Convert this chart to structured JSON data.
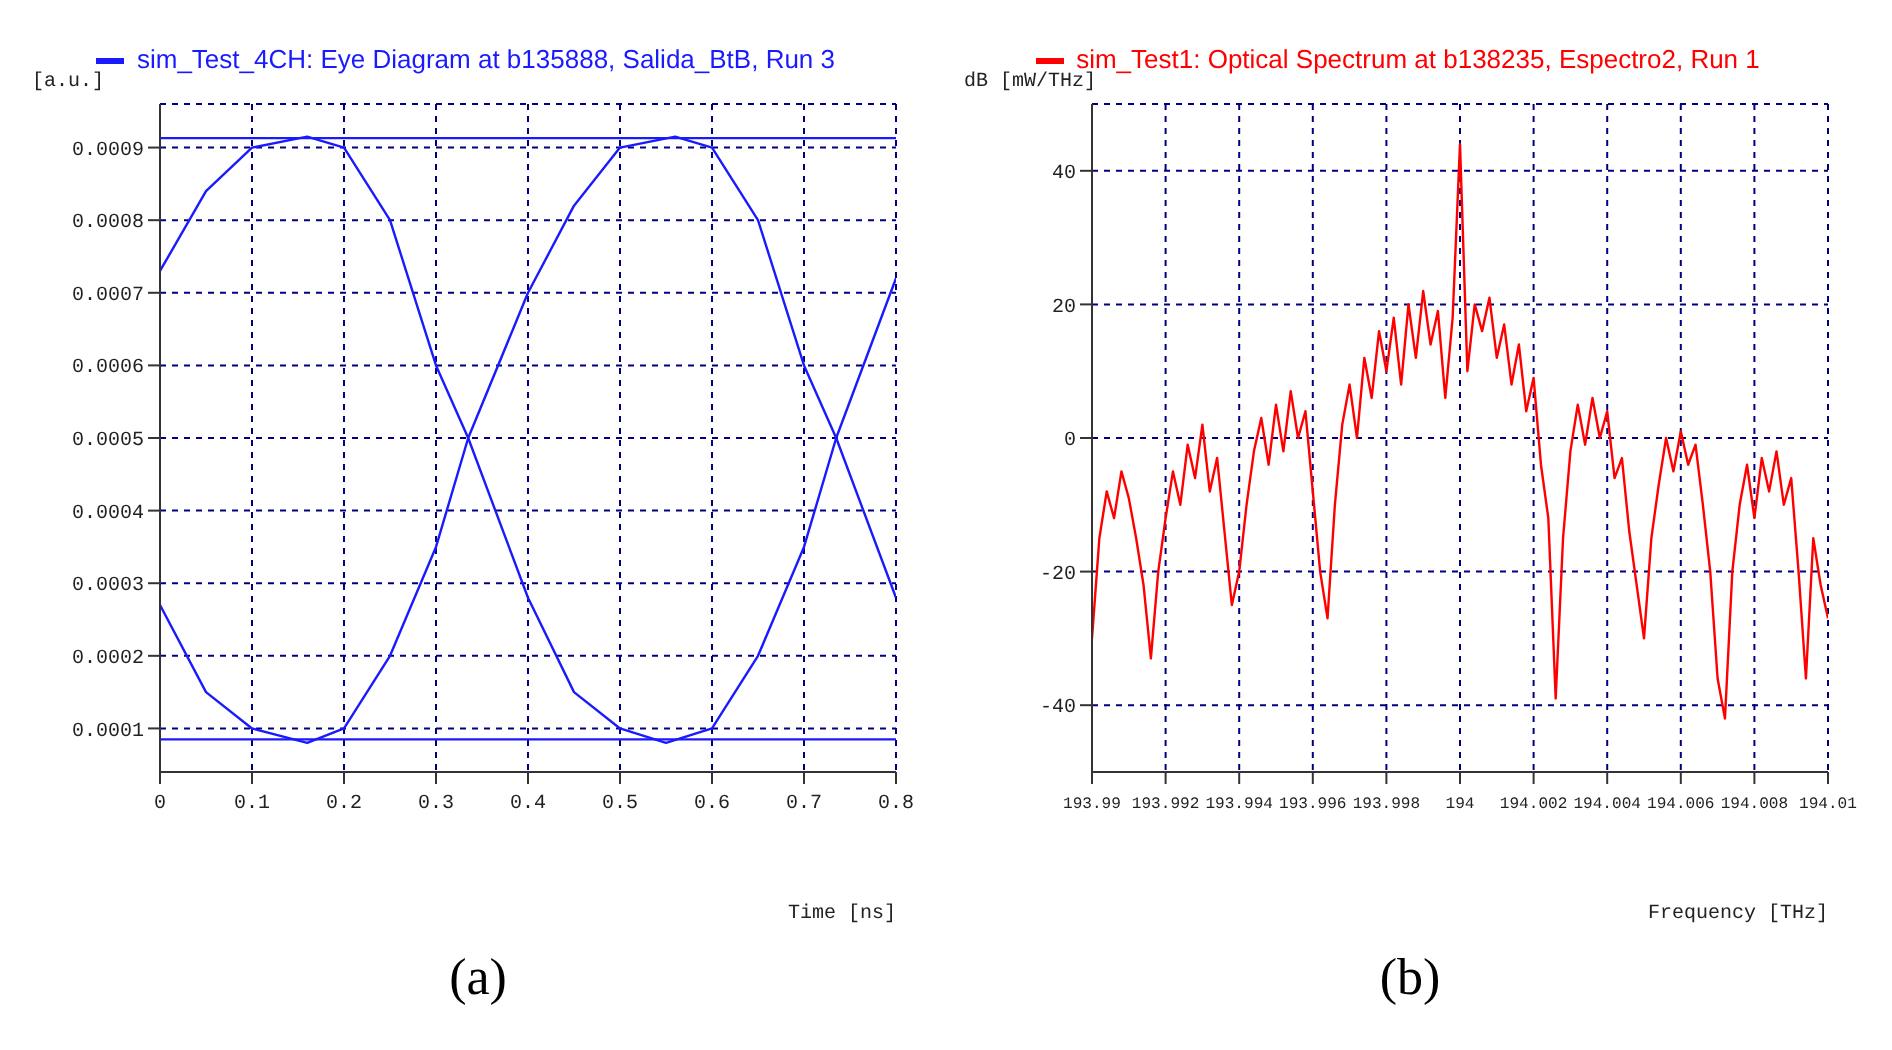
{
  "chart_data": [
    {
      "type": "line",
      "legend": "top",
      "grid": true,
      "ylabel": "[a.u.]",
      "xlabel": "Time [ns]",
      "annotations": [
        "(a)"
      ],
      "xlim": [
        0,
        0.8
      ],
      "xticks": [
        0,
        0.1,
        0.2,
        0.3,
        0.4,
        0.5,
        0.6,
        0.7,
        0.8
      ],
      "ylim": [
        4e-05,
        0.00096
      ],
      "yticks": [
        0.0001,
        0.0002,
        0.0003,
        0.0004,
        0.0005,
        0.0006,
        0.0007,
        0.0008,
        0.0009
      ],
      "series": [
        {
          "name": "sim_Test_4CH: Eye Diagram at b135888, Salida_BtB, Run 3",
          "color": "#1a1aff",
          "x": [
            0,
            0.05,
            0.1,
            0.16,
            0.2,
            0.25,
            0.3,
            0.335,
            0.4,
            0.45,
            0.5,
            0.55,
            0.6,
            0.65,
            0.7,
            0.735,
            0.8
          ],
          "values": [
            0.00073,
            0.00084,
            0.0009,
            0.000915,
            0.0009,
            0.0008,
            0.0006,
            0.0005,
            0.00028,
            0.00015,
            0.0001,
            8e-05,
            0.0001,
            0.0002,
            0.00035,
            0.0005,
            0.00072
          ]
        },
        {
          "color": "#1a1aff",
          "x": [
            0,
            0.05,
            0.1,
            0.16,
            0.2,
            0.25,
            0.3,
            0.335,
            0.4,
            0.45,
            0.5,
            0.56,
            0.6,
            0.65,
            0.7,
            0.735,
            0.8
          ],
          "values": [
            0.00027,
            0.00015,
            0.0001,
            8e-05,
            0.0001,
            0.0002,
            0.00035,
            0.0005,
            0.0007,
            0.00082,
            0.0009,
            0.000915,
            0.0009,
            0.0008,
            0.0006,
            0.0005,
            0.00028
          ]
        },
        {
          "color": "#1a1aff",
          "x": [
            0,
            0.8
          ],
          "values": [
            0.000913,
            0.000913
          ]
        },
        {
          "color": "#1a1aff",
          "x": [
            0,
            0.8
          ],
          "values": [
            8.5e-05,
            8.5e-05
          ]
        }
      ]
    },
    {
      "type": "line",
      "legend": "top",
      "grid": true,
      "ylabel": "dB [mW/THz]",
      "xlabel": "Frequency [THz]",
      "annotations": [
        "(b)"
      ],
      "xlim": [
        193.99,
        194.01
      ],
      "xticks": [
        193.99,
        193.992,
        193.994,
        193.996,
        193.998,
        194,
        194.002,
        194.004,
        194.006,
        194.008,
        194.01
      ],
      "ylim": [
        -50,
        50
      ],
      "yticks": [
        -40,
        -20,
        0,
        20,
        40
      ],
      "series": [
        {
          "name": "sim_Test1: Optical Spectrum at b138235, Espectro2, Run 1",
          "color": "#ff0000",
          "x": [
            193.99,
            193.9902,
            193.9904,
            193.9906,
            193.9908,
            193.991,
            193.9912,
            193.9914,
            193.9916,
            193.9918,
            193.992,
            193.9922,
            193.9924,
            193.9926,
            193.9928,
            193.993,
            193.9932,
            193.9934,
            193.9936,
            193.9938,
            193.994,
            193.9942,
            193.9944,
            193.9946,
            193.9948,
            193.995,
            193.9952,
            193.9954,
            193.9956,
            193.9958,
            193.996,
            193.9962,
            193.9964,
            193.9966,
            193.9968,
            193.997,
            193.9972,
            193.9974,
            193.9976,
            193.9978,
            193.998,
            193.9982,
            193.9984,
            193.9986,
            193.9988,
            193.999,
            193.9992,
            193.9994,
            193.9996,
            193.9998,
            194,
            194.0002,
            194.0004,
            194.0006,
            194.0008,
            194.001,
            194.0012,
            194.0014,
            194.0016,
            194.0018,
            194.002,
            194.0022,
            194.0024,
            194.0026,
            194.0028,
            194.003,
            194.0032,
            194.0034,
            194.0036,
            194.0038,
            194.004,
            194.0042,
            194.0044,
            194.0046,
            194.0048,
            194.005,
            194.0052,
            194.0054,
            194.0056,
            194.0058,
            194.006,
            194.0062,
            194.0064,
            194.0066,
            194.0068,
            194.007,
            194.0072,
            194.0074,
            194.0076,
            194.0078,
            194.008,
            194.0082,
            194.0084,
            194.0086,
            194.0088,
            194.009,
            194.0092,
            194.0094,
            194.0096,
            194.0098,
            194.01
          ],
          "values": [
            -30,
            -15,
            -8,
            -12,
            -5,
            -9,
            -15,
            -22,
            -33,
            -20,
            -12,
            -5,
            -10,
            -1,
            -6,
            2,
            -8,
            -3,
            -14,
            -25,
            -20,
            -10,
            -2,
            3,
            -4,
            5,
            -2,
            7,
            0,
            4,
            -8,
            -20,
            -27,
            -10,
            2,
            8,
            0,
            12,
            6,
            16,
            10,
            18,
            8,
            20,
            12,
            22,
            14,
            19,
            6,
            18,
            44,
            10,
            20,
            16,
            21,
            12,
            17,
            8,
            14,
            4,
            9,
            -4,
            -12,
            -39,
            -15,
            -2,
            5,
            -1,
            6,
            0,
            4,
            -6,
            -3,
            -14,
            -22,
            -30,
            -15,
            -7,
            0,
            -5,
            1,
            -4,
            -1,
            -10,
            -20,
            -36,
            -42,
            -20,
            -10,
            -4,
            -12,
            -3,
            -8,
            -2,
            -10,
            -6,
            -20,
            -36,
            -15,
            -22,
            -27
          ]
        }
      ]
    }
  ]
}
